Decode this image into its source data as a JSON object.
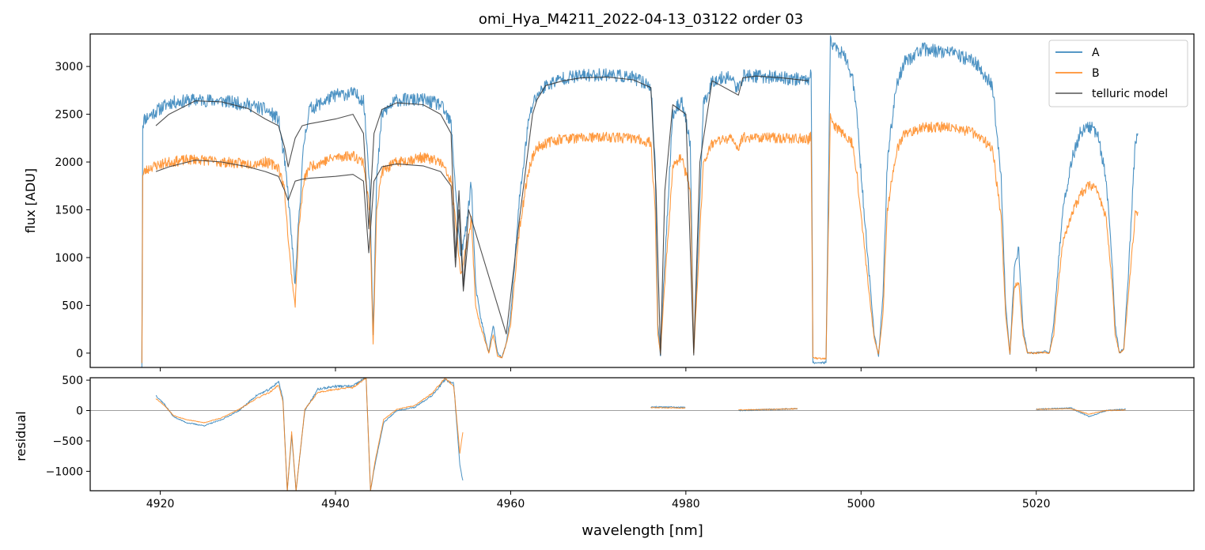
{
  "figure": {
    "title": "omi_Hya_M4211_2022-04-13_03122  order 03"
  },
  "colors": {
    "series_A": "#1f77b4",
    "series_B": "#ff7f0e",
    "telluric": "#555555",
    "zero_line": "#808080"
  },
  "chart_data": [
    {
      "type": "line",
      "panel": "top",
      "title": "omi_Hya_M4211_2022-04-13_03122  order 03",
      "xlabel": "",
      "ylabel": "flux [ADU]",
      "xlim": [
        4912,
        5038
      ],
      "ylim": [
        -150,
        3340
      ],
      "yticks": [
        0,
        500,
        1000,
        1500,
        2000,
        2500,
        3000
      ],
      "xticks": [
        4920,
        4940,
        4960,
        4980,
        5000,
        5020
      ],
      "show_xtick_labels": false,
      "grid": false,
      "legend": {
        "placement": "top-right",
        "entries": [
          "A",
          "B",
          "telluric model"
        ]
      },
      "series": [
        {
          "name": "A",
          "x": [
            4917.9,
            4918.0,
            4918.2,
            4919,
            4921,
            4924,
            4927,
            4930,
            4932,
            4933.5,
            4934.2,
            4934.6,
            4935.0,
            4935.4,
            4935.8,
            4936.4,
            4937,
            4940,
            4942,
            4943.2,
            4943.9,
            4944.3,
            4944.7,
            4945.3,
            4947,
            4950,
            4952,
            4953.2,
            4953.8,
            4954.3,
            4954.9,
            4955.5,
            4956.0,
            4956.5,
            4957.5,
            4958.0,
            4958.5,
            4959.0,
            4959.5,
            4960,
            4961,
            4962,
            4962.5,
            4963,
            4964,
            4966,
            4968,
            4971,
            4974,
            4976,
            4976.5,
            4976.8,
            4977.1,
            4977.5,
            4978.5,
            4979.5,
            4980.5,
            4980.9,
            4981.3,
            4982,
            4983,
            4985,
            4986,
            4986.5,
            4988,
            4991,
            4994,
            4994.3,
            4994.5,
            4996.0,
            4996.5,
            4996.7,
            4997,
            4998,
            4999,
            4999.5,
            5000.5,
            5001.5,
            5002.0,
            5002.5,
            5003,
            5004,
            5005,
            5007,
            5010,
            5013,
            5015,
            5016,
            5016.5,
            5017,
            5017.5,
            5018,
            5018.5,
            5019,
            5020,
            5021,
            5021.5,
            5022,
            5022.5,
            5023,
            5024,
            5025,
            5026,
            5027,
            5028,
            5028.7,
            5029,
            5029.5,
            5030,
            5030.5,
            5031.3,
            5031.6
          ],
          "y": [
            -150,
            2400,
            2450,
            2500,
            2620,
            2650,
            2640,
            2600,
            2550,
            2450,
            2000,
            1650,
            1200,
            700,
            1400,
            2200,
            2550,
            2700,
            2720,
            2650,
            1800,
            200,
            1800,
            2500,
            2650,
            2650,
            2600,
            2400,
            1600,
            1000,
            1300,
            1800,
            700,
            400,
            0,
            300,
            0,
            -50,
            100,
            400,
            1600,
            2400,
            2600,
            2700,
            2800,
            2880,
            2900,
            2920,
            2880,
            2800,
            2000,
            300,
            -30,
            800,
            2500,
            2650,
            2200,
            0,
            900,
            2600,
            2850,
            2900,
            2750,
            2900,
            2900,
            2880,
            2860,
            3000,
            -100,
            -100,
            3300,
            3230,
            3200,
            3120,
            2900,
            2500,
            1300,
            200,
            -30,
            600,
            2000,
            2800,
            3050,
            3180,
            3150,
            3050,
            2800,
            1800,
            500,
            -10,
            900,
            1100,
            250,
            0,
            0,
            20,
            0,
            300,
            900,
            1500,
            2000,
            2300,
            2380,
            2300,
            1800,
            900,
            300,
            0,
            50,
            800,
            2200,
            2300
          ]
        },
        {
          "name": "B",
          "x": [
            4917.9,
            4918.0,
            4918.2,
            4919,
            4921,
            4924,
            4927,
            4930,
            4932,
            4933.5,
            4934.2,
            4934.6,
            4935.0,
            4935.4,
            4935.8,
            4936.4,
            4937,
            4940,
            4942,
            4943.2,
            4943.9,
            4944.3,
            4944.7,
            4945.3,
            4947,
            4950,
            4952,
            4953.2,
            4953.8,
            4954.3,
            4954.9,
            4955.5,
            4956.0,
            4956.5,
            4957.5,
            4958.0,
            4958.5,
            4959.0,
            4959.5,
            4960,
            4961,
            4962,
            4962.5,
            4963,
            4964,
            4966,
            4968,
            4971,
            4974,
            4976,
            4976.5,
            4976.8,
            4977.1,
            4977.5,
            4978.5,
            4979.5,
            4980.5,
            4980.9,
            4981.3,
            4982,
            4983,
            4985,
            4986,
            4986.5,
            4988,
            4991,
            4994,
            4994.3,
            4994.5,
            4996.0,
            4996.5,
            4996.7,
            4997,
            4998,
            4999,
            4999.5,
            5000.5,
            5001.5,
            5002.0,
            5002.5,
            5003,
            5004,
            5005,
            5007,
            5010,
            5013,
            5015,
            5016,
            5016.5,
            5017,
            5017.5,
            5018,
            5018.5,
            5019,
            5020,
            5021,
            5021.5,
            5022,
            5022.5,
            5023,
            5024,
            5025,
            5026,
            5027,
            5028,
            5028.7,
            5029,
            5029.5,
            5030,
            5030.5,
            5031.3,
            5031.6
          ],
          "y": [
            -100,
            1850,
            1900,
            1950,
            2000,
            2030,
            2000,
            1980,
            2000,
            1950,
            1700,
            1200,
            800,
            500,
            1300,
            1800,
            1950,
            2050,
            2070,
            2000,
            1500,
            100,
            1500,
            1900,
            2000,
            2050,
            2000,
            1800,
            1300,
            800,
            1100,
            1400,
            500,
            300,
            0,
            200,
            -30,
            -50,
            100,
            300,
            1300,
            1900,
            2050,
            2150,
            2200,
            2250,
            2250,
            2260,
            2250,
            2200,
            1500,
            200,
            0,
            600,
            1950,
            2050,
            1700,
            0,
            700,
            2000,
            2200,
            2250,
            2150,
            2260,
            2260,
            2250,
            2240,
            2280,
            -50,
            -60,
            2480,
            2420,
            2380,
            2300,
            2200,
            1900,
            1000,
            150,
            -10,
            400,
            1500,
            2100,
            2300,
            2360,
            2370,
            2300,
            2150,
            1400,
            400,
            -10,
            700,
            750,
            180,
            0,
            0,
            10,
            0,
            200,
            700,
            1150,
            1450,
            1650,
            1750,
            1700,
            1400,
            700,
            200,
            0,
            40,
            600,
            1450,
            1480
          ]
        },
        {
          "name": "telluric model",
          "x": [
            4919.5,
            4921,
            4924,
            4927,
            4930,
            4932,
            4933.5,
            4934.2,
            4934.6,
            4935.0,
            4935.4,
            4936.2,
            4937,
            4940,
            4942,
            4943.2,
            4943.8,
            4944.4,
            4945.3,
            4947,
            4950,
            4952,
            4953.2,
            4953.7,
            4954.1,
            4954.6,
            4955.2
          ],
          "y": [
            2380,
            2500,
            2640,
            2630,
            2560,
            2450,
            2380,
            2150,
            1950,
            2100,
            2250,
            2380,
            2400,
            2450,
            2500,
            2300,
            1300,
            2300,
            2550,
            2620,
            2600,
            2500,
            2300,
            1000,
            1700,
            700,
            1500
          ],
          "y_lower": [
            1900,
            1950,
            2020,
            2000,
            1950,
            1900,
            1850,
            1700,
            1600,
            1700,
            1800,
            1820,
            1830,
            1850,
            1870,
            1800,
            1050,
            1800,
            1950,
            1980,
            1960,
            1900,
            1750,
            900,
            1500,
            650,
            1250
          ]
        }
      ]
    },
    {
      "type": "line",
      "panel": "bottom",
      "xlabel": "wavelength [nm]",
      "ylabel": "residual",
      "xlim": [
        4912,
        5038
      ],
      "ylim": [
        -1320,
        540
      ],
      "yticks": [
        -1000,
        -500,
        0,
        500
      ],
      "xticks": [
        4920,
        4940,
        4960,
        4980,
        5000,
        5020
      ],
      "grid": false,
      "zero_line": true,
      "series": [
        {
          "name": "A",
          "x": [
            4919.5,
            4920.5,
            4921.5,
            4923,
            4925,
            4927,
            4929,
            4931,
            4932.5,
            4933.5,
            4934.0,
            4934.5,
            4935.0,
            4935.5,
            4936.5,
            4938,
            4940,
            4942,
            4943.0,
            4943.5,
            4944.0,
            4944.5,
            4945.5,
            4947,
            4949,
            4951,
            4952.5,
            4953.5,
            4954.2,
            4954.6,
            4959,
            4965,
            4970,
            4976,
            4980,
            4986,
            4990,
            4992.8,
            4998.2,
            5005,
            5010,
            5015,
            5020,
            5024,
            5026,
            5028,
            5030.2
          ],
          "y": [
            250,
            100,
            -100,
            -200,
            -250,
            -150,
            0,
            250,
            350,
            480,
            200,
            -1320,
            -400,
            -1320,
            0,
            350,
            400,
            400,
            500,
            540,
            -1320,
            -900,
            -200,
            0,
            50,
            250,
            500,
            450,
            -900,
            -1200,
            0,
            20,
            30,
            60,
            50,
            0,
            20,
            30,
            50,
            80,
            30,
            70,
            20,
            40,
            -100,
            0,
            20
          ]
        },
        {
          "name": "B",
          "x": [
            4919.5,
            4920.5,
            4921.5,
            4923,
            4925,
            4927,
            4929,
            4931,
            4932.5,
            4933.5,
            4934.0,
            4934.5,
            4935.0,
            4935.5,
            4936.5,
            4938,
            4940,
            4942,
            4943.0,
            4943.5,
            4944.0,
            4944.5,
            4945.5,
            4947,
            4949,
            4951,
            4952.5,
            4953.5,
            4954.2,
            4954.6,
            4959,
            4965,
            4970,
            4976,
            4980,
            4986,
            4990,
            4992.8,
            4998.2,
            5005,
            5010,
            5015,
            5020,
            5024,
            5026,
            5028,
            5030.2
          ],
          "y": [
            200,
            80,
            -80,
            -150,
            -200,
            -120,
            20,
            200,
            300,
            420,
            150,
            -1320,
            -350,
            -1320,
            20,
            300,
            350,
            380,
            480,
            540,
            -1320,
            -850,
            -150,
            20,
            80,
            280,
            540,
            400,
            -700,
            -300,
            0,
            10,
            20,
            50,
            40,
            10,
            20,
            30,
            40,
            60,
            30,
            60,
            20,
            30,
            -60,
            0,
            10
          ]
        }
      ]
    }
  ]
}
